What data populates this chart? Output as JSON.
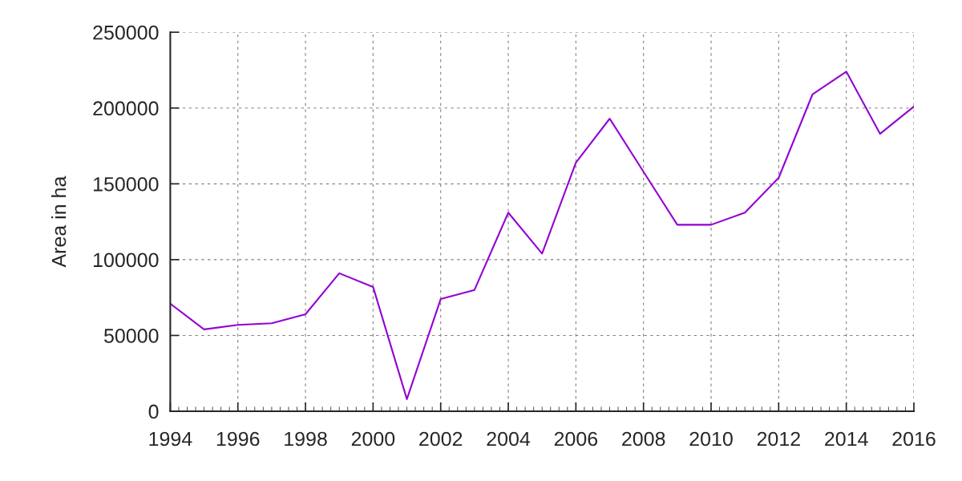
{
  "chart_data": {
    "type": "line",
    "ylabel": "Area in ha",
    "x": [
      1994,
      1995,
      1996,
      1997,
      1998,
      1999,
      2000,
      2001,
      2002,
      2003,
      2004,
      2005,
      2006,
      2007,
      2008,
      2009,
      2010,
      2011,
      2012,
      2013,
      2014,
      2015,
      2016
    ],
    "series": [
      {
        "color": "#9400d3",
        "values": [
          71000,
          54000,
          57000,
          58000,
          64000,
          91000,
          82000,
          8000,
          74000,
          80000,
          131000,
          104000,
          164000,
          193000,
          158000,
          123000,
          123000,
          131000,
          154000,
          209000,
          224000,
          183000,
          201000
        ]
      }
    ],
    "xlim": [
      1994,
      2016
    ],
    "xticks": [
      1994,
      1996,
      1998,
      2000,
      2002,
      2004,
      2006,
      2008,
      2010,
      2012,
      2014,
      2016
    ],
    "ylim": [
      0,
      250000
    ],
    "yticks": [
      0,
      50000,
      100000,
      150000,
      200000,
      250000
    ],
    "grid": true,
    "marker": "none",
    "line_style": "solid"
  }
}
